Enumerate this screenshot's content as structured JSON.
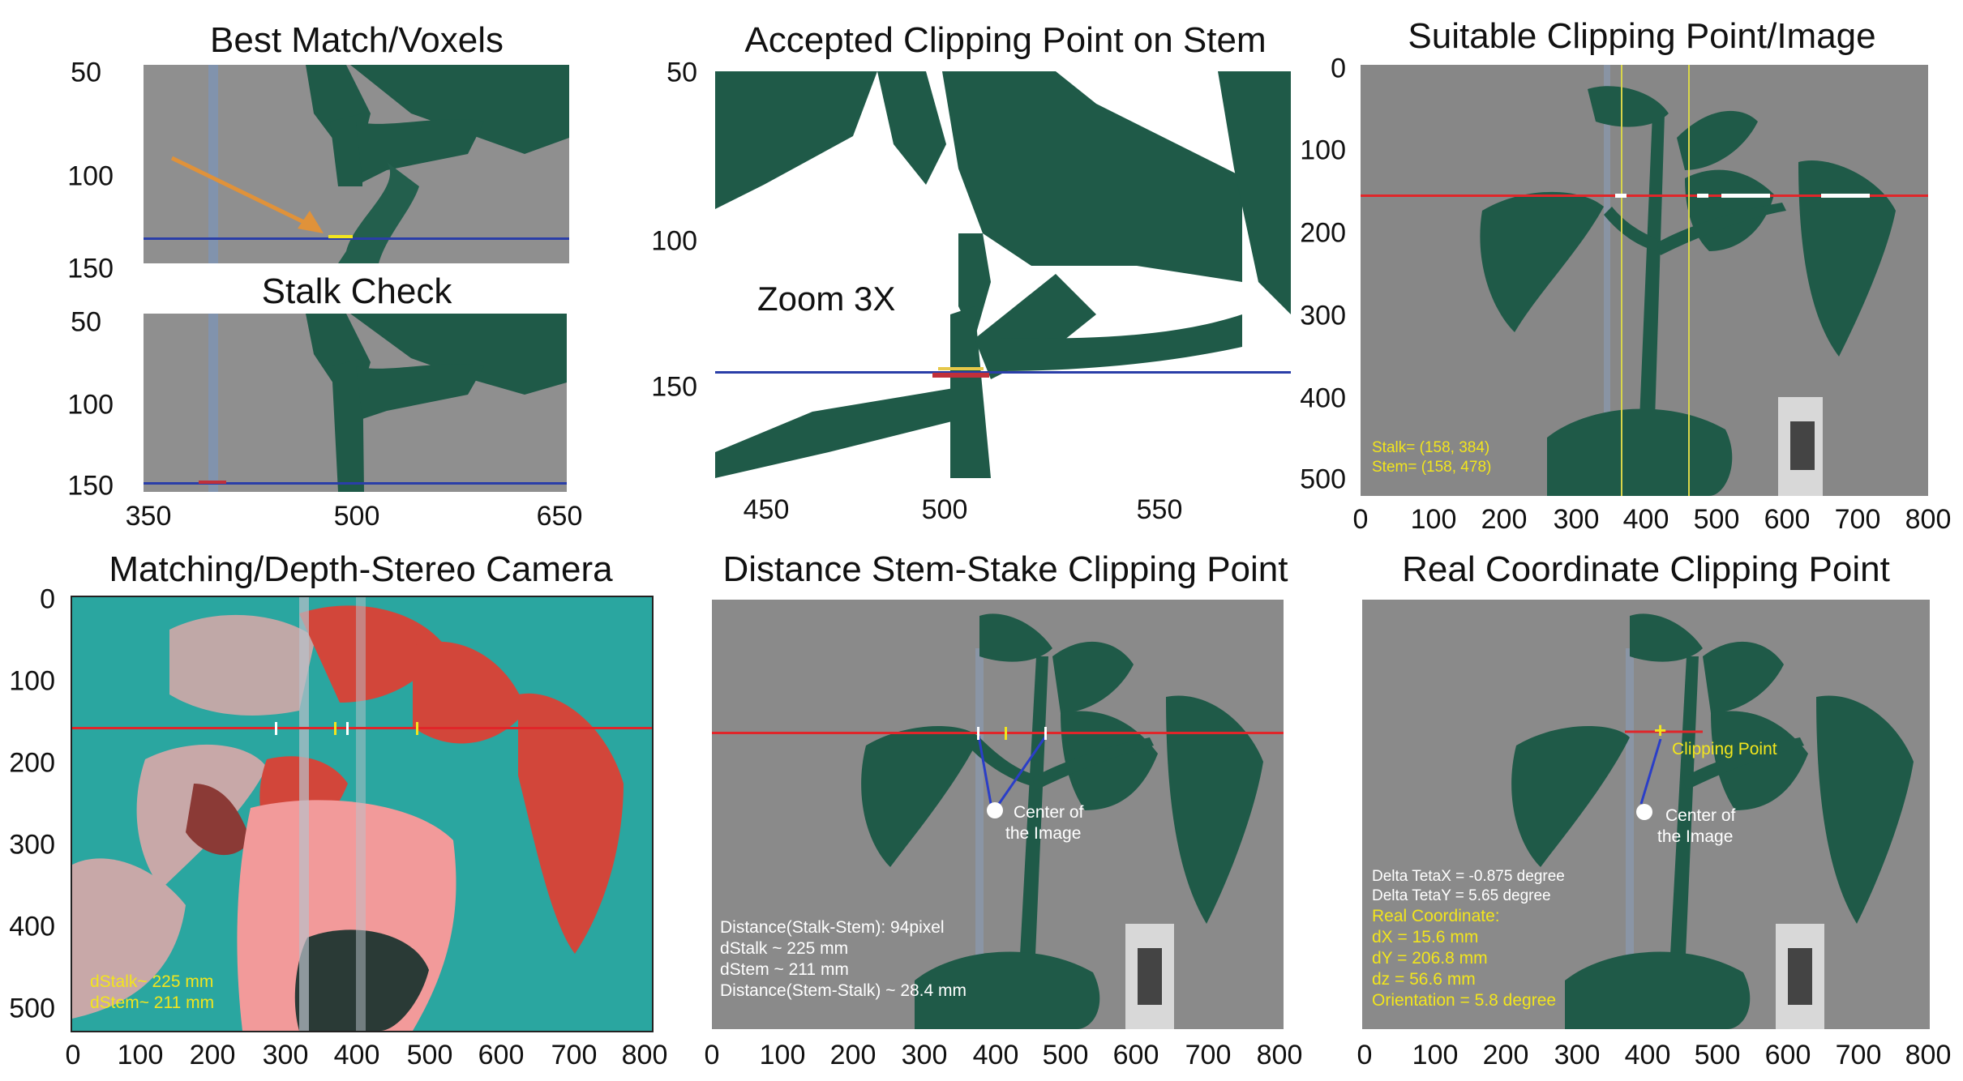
{
  "panels": {
    "best_match": {
      "title": "Best Match/Voxels",
      "y_ticks": [
        "50",
        "100",
        "150"
      ]
    },
    "stalk_check": {
      "title": "Stalk Check",
      "y_ticks": [
        "50",
        "100",
        "150"
      ],
      "x_ticks": [
        "350",
        "500",
        "650"
      ]
    },
    "accepted": {
      "title": "Accepted Clipping Point on Stem",
      "y_ticks": [
        "50",
        "100",
        "150"
      ],
      "x_ticks": [
        "450",
        "500",
        "550"
      ],
      "zoom_label": "Zoom 3X"
    },
    "suitable": {
      "title": "Suitable Clipping Point/Image",
      "y_ticks": [
        "0",
        "100",
        "200",
        "300",
        "400",
        "500"
      ],
      "x_ticks": [
        "0",
        "100",
        "200",
        "300",
        "400",
        "500",
        "600",
        "700",
        "800"
      ],
      "stalk_text": "Stalk= (158, 384)",
      "stem_text": "Stem= (158, 478)"
    },
    "matching": {
      "title": "Matching/Depth-Stereo Camera",
      "y_ticks": [
        "0",
        "100",
        "200",
        "300",
        "400",
        "500"
      ],
      "x_ticks": [
        "0",
        "100",
        "200",
        "300",
        "400",
        "500",
        "600",
        "700",
        "800"
      ],
      "dstalk_text": "dStalk~ 225 mm",
      "dstem_text": "dStem~ 211 mm"
    },
    "distance": {
      "title": "Distance Stem-Stake Clipping Point",
      "x_ticks": [
        "0",
        "100",
        "200",
        "300",
        "400",
        "500",
        "600",
        "700",
        "800"
      ],
      "center_line1": "Center of",
      "center_line2": "the Image",
      "info": [
        "Distance(Stalk-Stem): 94pixel",
        "dStalk ~ 225 mm",
        "dStem ~ 211 mm",
        "Distance(Stem-Stalk) ~ 28.4 mm"
      ]
    },
    "real": {
      "title": "Real Coordinate Clipping Point",
      "x_ticks": [
        "0",
        "100",
        "200",
        "300",
        "400",
        "500",
        "600",
        "700",
        "800"
      ],
      "clipping_label": "Clipping Point",
      "center_line1": "Center of",
      "center_line2": "the Image",
      "delta_x": "Delta TetaX = -0.875 degree",
      "delta_y": "Delta TetaY = 5.65 degree",
      "real_title": "Real Coordinate:",
      "dx": "dX = 15.6 mm",
      "dy": "dY = 206.8 mm",
      "dz": "dz = 56.6 mm",
      "orientation": "Orientation = 5.8 degree"
    }
  },
  "colors": {
    "leaf": "#1f5a48",
    "background_gray": "#8e8e8e",
    "red_line": "#e0262a",
    "blue_line": "#2a3ea8",
    "overlay_yellow": "#f2e51d",
    "teal": "#2aa6a0",
    "pink": "#e9797a"
  }
}
